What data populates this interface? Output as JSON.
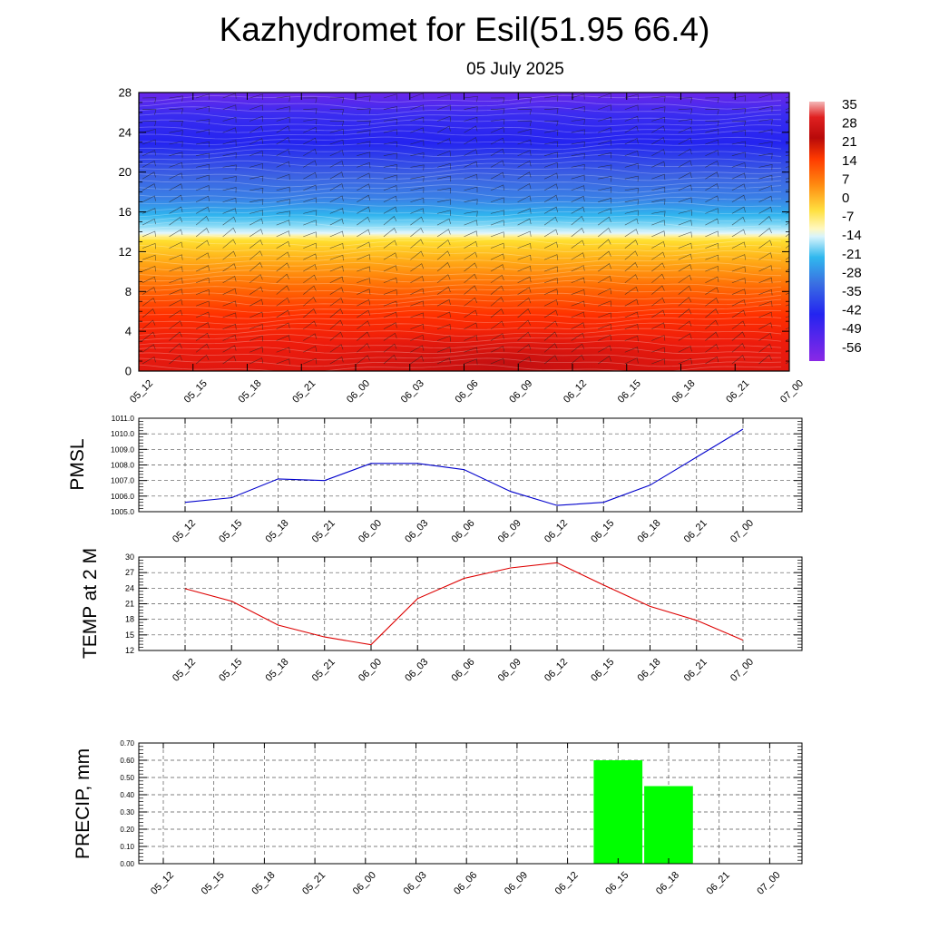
{
  "header": {
    "title": "Kazhydromet for Esil(51.95 66.4)",
    "date": "05 July 2025"
  },
  "chart_data": [
    {
      "type": "heatmap",
      "name": "vertical temperature / wind cross-section",
      "x_tick_labels": [
        "05_12",
        "05_15",
        "05_18",
        "05_21",
        "06_00",
        "06_03",
        "06_06",
        "06_09",
        "06_12",
        "06_15",
        "06_18",
        "06_21",
        "07_00"
      ],
      "y_ticks": [
        0,
        4,
        8,
        12,
        16,
        20,
        24,
        28
      ],
      "ylim": [
        0,
        28
      ],
      "colorbar_labels": [
        "35",
        "28",
        "21",
        "14",
        "7",
        "0",
        "-7",
        "-14",
        "-21",
        "-28",
        "-35",
        "-42",
        "-49",
        "-56"
      ],
      "colorbar_range": [
        -63,
        42
      ],
      "colors": {
        "violet": "#7a22e8",
        "blue": "#2e2ef0",
        "mid_blue": "#3a6ae0",
        "light_blue": "#30b4ee",
        "cyan": "#58d0f4",
        "pale": "#d4f2fb",
        "yellow": "#ffec38",
        "orange": "#ff9c10",
        "red_orange": "#ff4a00",
        "red": "#ee1c0c",
        "dark_red": "#c80e10",
        "pink": "#f0a8a8"
      }
    },
    {
      "type": "line",
      "ylabel": "PMSL",
      "categories": [
        "05_12",
        "05_15",
        "05_18",
        "05_21",
        "06_00",
        "06_03",
        "06_06",
        "06_09",
        "06_12",
        "06_15",
        "06_18",
        "06_21",
        "07_00"
      ],
      "values": [
        1005.6,
        1005.9,
        1007.1,
        1007.0,
        1008.1,
        1008.1,
        1007.7,
        1006.3,
        1005.4,
        1005.6,
        1006.7,
        1008.5,
        1010.3
      ],
      "ylim": [
        1005.0,
        1011.0
      ],
      "y_tick_labels": [
        "1005.0",
        "1006.0",
        "1007.0",
        "1008.0",
        "1009.0",
        "1010.0",
        "1011.0"
      ],
      "color": "#0000cc",
      "grid": true
    },
    {
      "type": "line",
      "ylabel": "TEMP at 2 M",
      "categories": [
        "05_12",
        "05_15",
        "05_18",
        "05_21",
        "06_00",
        "06_03",
        "06_06",
        "06_09",
        "06_12",
        "06_15",
        "06_18",
        "06_21",
        "07_00"
      ],
      "values": [
        23.9,
        21.5,
        16.9,
        14.6,
        13.1,
        22.0,
        25.9,
        27.9,
        28.9,
        24.6,
        20.5,
        17.8,
        14.0
      ],
      "ylim": [
        12,
        30
      ],
      "y_tick_labels": [
        "12",
        "15",
        "18",
        "21",
        "24",
        "27",
        "30"
      ],
      "color": "#dd0000",
      "grid": true
    },
    {
      "type": "bar",
      "ylabel": "PRECIP, mm",
      "categories": [
        "05_12",
        "05_15",
        "05_18",
        "05_21",
        "06_00",
        "06_03",
        "06_06",
        "06_09",
        "06_12",
        "06_15",
        "06_18",
        "06_21",
        "07_00"
      ],
      "values": [
        0,
        0,
        0,
        0,
        0,
        0,
        0,
        0,
        0,
        0.6,
        0.45,
        0,
        0
      ],
      "ylim": [
        0,
        0.7
      ],
      "y_tick_labels": [
        "0.00",
        "0.10",
        "0.20",
        "0.30",
        "0.40",
        "0.50",
        "0.60",
        "0.70"
      ],
      "color": "#00ff00",
      "grid": true
    }
  ]
}
